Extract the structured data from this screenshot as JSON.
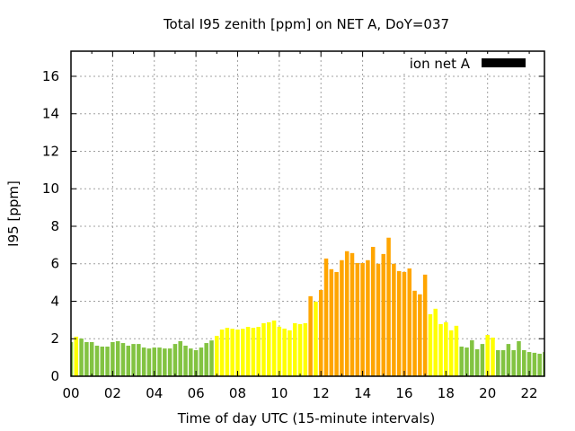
{
  "chart_data": {
    "type": "bar",
    "title": "Total I95 zenith [ppm] on NET A, DoY=037",
    "xlabel": "Time of day UTC (15-minute intervals)",
    "ylabel": "I95 [ppm]",
    "xlim": [
      0,
      22.73
    ],
    "ylim": [
      0,
      17.34
    ],
    "grid": true,
    "legend": {
      "label": "ion net A",
      "color": "#000000",
      "placement": "top-right"
    },
    "xticks": [
      {
        "value": 0,
        "label": "00"
      },
      {
        "value": 2,
        "label": "02"
      },
      {
        "value": 4,
        "label": "04"
      },
      {
        "value": 6,
        "label": "06"
      },
      {
        "value": 8,
        "label": "08"
      },
      {
        "value": 10,
        "label": "10"
      },
      {
        "value": 12,
        "label": "12"
      },
      {
        "value": 14,
        "label": "14"
      },
      {
        "value": 16,
        "label": "16"
      },
      {
        "value": 18,
        "label": "18"
      },
      {
        "value": 20,
        "label": "20"
      },
      {
        "value": 22,
        "label": "22"
      }
    ],
    "yticks": [
      {
        "value": 0,
        "label": "0"
      },
      {
        "value": 2,
        "label": "2"
      },
      {
        "value": 4,
        "label": "4"
      },
      {
        "value": 6,
        "label": "6"
      },
      {
        "value": 8,
        "label": "8"
      },
      {
        "value": 10,
        "label": "10"
      },
      {
        "value": 12,
        "label": "12"
      },
      {
        "value": 14,
        "label": "14"
      },
      {
        "value": 16,
        "label": "16"
      }
    ],
    "palette": {
      "g": "#82c341",
      "y": "#ffff00",
      "o": "#ffa500"
    },
    "interval_hours": 0.25,
    "values": [
      1.82,
      2.11,
      2.01,
      1.82,
      1.82,
      1.63,
      1.58,
      1.58,
      1.82,
      1.87,
      1.77,
      1.63,
      1.72,
      1.72,
      1.53,
      1.48,
      1.53,
      1.53,
      1.48,
      1.48,
      1.72,
      1.87,
      1.63,
      1.48,
      1.39,
      1.53,
      1.77,
      1.91,
      2.15,
      2.49,
      2.58,
      2.53,
      2.49,
      2.53,
      2.63,
      2.58,
      2.63,
      2.83,
      2.88,
      2.97,
      2.64,
      2.54,
      2.45,
      2.83,
      2.78,
      2.83,
      4.27,
      3.98,
      4.6,
      6.28,
      5.71,
      5.56,
      6.19,
      6.67,
      6.57,
      6.04,
      6.04,
      6.19,
      6.9,
      6.0,
      6.52,
      7.39,
      6.0,
      5.61,
      5.56,
      5.75,
      4.56,
      4.37,
      5.42,
      3.31,
      3.6,
      2.78,
      2.88,
      2.45,
      2.69,
      1.58,
      1.53,
      1.92,
      1.44,
      1.72,
      2.2,
      2.06,
      1.39,
      1.39,
      1.72,
      1.39,
      1.87,
      1.39,
      1.29,
      1.25,
      1.2,
      1.29
    ],
    "colors": [
      "g",
      "y",
      "g",
      "g",
      "g",
      "g",
      "g",
      "g",
      "g",
      "g",
      "g",
      "g",
      "g",
      "g",
      "g",
      "g",
      "g",
      "g",
      "g",
      "g",
      "g",
      "g",
      "g",
      "g",
      "g",
      "g",
      "g",
      "g",
      "y",
      "y",
      "y",
      "y",
      "y",
      "y",
      "y",
      "y",
      "y",
      "y",
      "y",
      "y",
      "y",
      "y",
      "y",
      "y",
      "y",
      "y",
      "o",
      "y",
      "o",
      "o",
      "o",
      "o",
      "o",
      "o",
      "o",
      "o",
      "o",
      "o",
      "o",
      "o",
      "o",
      "o",
      "o",
      "o",
      "o",
      "o",
      "o",
      "o",
      "o",
      "y",
      "y",
      "y",
      "y",
      "y",
      "y",
      "g",
      "g",
      "g",
      "g",
      "g",
      "y",
      "y",
      "g",
      "g",
      "g",
      "g",
      "g",
      "g",
      "g",
      "g",
      "g",
      "g"
    ]
  }
}
